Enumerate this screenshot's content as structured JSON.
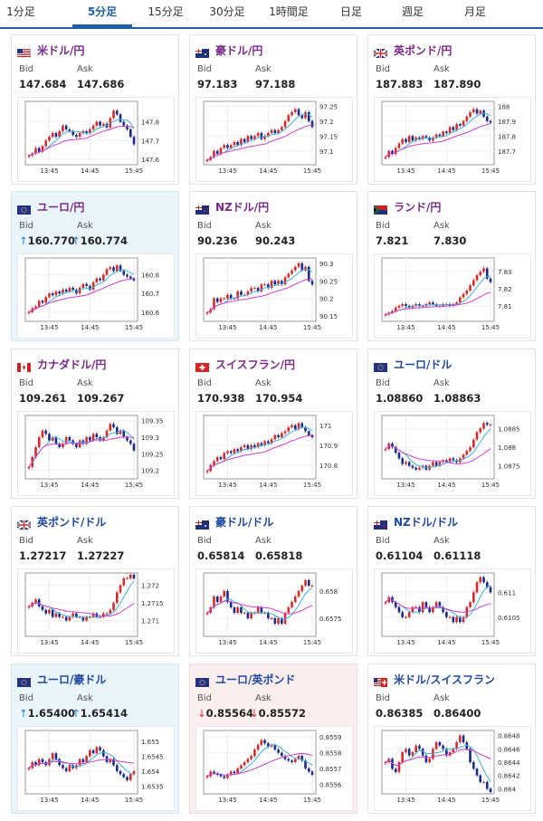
{
  "tabs": [
    {
      "label": "1分足",
      "active": false
    },
    {
      "label": "5分足",
      "active": true
    },
    {
      "label": "15分足",
      "active": false
    },
    {
      "label": "30分足",
      "active": false
    },
    {
      "label": "1時間足",
      "active": false
    },
    {
      "label": "日足",
      "active": false
    },
    {
      "label": "週足",
      "active": false
    },
    {
      "label": "月足",
      "active": false
    }
  ],
  "quote_labels": {
    "bid": "Bid",
    "ask": "Ask"
  },
  "colors": {
    "up": "#d62b2b",
    "down": "#1a2a8a",
    "ma_short": "#3fb0d9",
    "ma_long": "#d040d0",
    "accent": "#1f5fa8"
  },
  "pairs": [
    {
      "name": "米ドル/円",
      "flag": "us",
      "bid": "147.684",
      "ask": "147.686",
      "change": "",
      "highlight": "",
      "chart_data": {
        "type": "candlestick",
        "x_ticks": [
          "13:45",
          "14:45",
          "15:45"
        ],
        "y_ticks": [
          "147.6",
          "147.7",
          "147.8"
        ],
        "ylim": [
          147.58,
          147.9
        ],
        "close": [
          147.62,
          147.63,
          147.66,
          147.64,
          147.67,
          147.7,
          147.72,
          147.74,
          147.72,
          147.75,
          147.78,
          147.76,
          147.75,
          147.73,
          147.72,
          147.74,
          147.75,
          147.74,
          147.76,
          147.78,
          147.8,
          147.78,
          147.79,
          147.77,
          147.82,
          147.86,
          147.84,
          147.8,
          147.78,
          147.76,
          147.72,
          147.68
        ]
      }
    },
    {
      "name": "豪ドル/円",
      "flag": "au",
      "bid": "97.183",
      "ask": "97.188",
      "change": "",
      "highlight": "",
      "chart_data": {
        "type": "candlestick",
        "x_ticks": [
          "13:45",
          "14:45",
          "15:45"
        ],
        "y_ticks": [
          "97.1",
          "97.15",
          "97.2",
          "97.25"
        ],
        "ylim": [
          97.06,
          97.26
        ],
        "close": [
          97.07,
          97.08,
          97.1,
          97.09,
          97.11,
          97.12,
          97.11,
          97.12,
          97.13,
          97.12,
          97.14,
          97.13,
          97.15,
          97.14,
          97.15,
          97.16,
          97.14,
          97.15,
          97.16,
          97.17,
          97.16,
          97.17,
          97.18,
          97.2,
          97.22,
          97.23,
          97.24,
          97.22,
          97.21,
          97.23,
          97.2,
          97.18
        ]
      }
    },
    {
      "name": "英ポンド/円",
      "flag": "gb",
      "bid": "187.883",
      "ask": "187.890",
      "change": "",
      "highlight": "",
      "chart_data": {
        "type": "candlestick",
        "x_ticks": [
          "13:45",
          "14:45",
          "15:45"
        ],
        "y_ticks": [
          "187.7",
          "187.8",
          "187.9",
          "188"
        ],
        "ylim": [
          187.62,
          188.02
        ],
        "close": [
          187.66,
          187.7,
          187.68,
          187.72,
          187.75,
          187.78,
          187.76,
          187.8,
          187.77,
          187.79,
          187.78,
          187.8,
          187.79,
          187.77,
          187.79,
          187.81,
          187.8,
          187.83,
          187.82,
          187.86,
          187.84,
          187.88,
          187.87,
          187.9,
          187.93,
          187.96,
          187.98,
          187.95,
          187.97,
          187.93,
          187.9,
          187.89
        ]
      }
    },
    {
      "name": "ユーロ/円",
      "flag": "eu",
      "bid": "160.770",
      "ask": "160.774",
      "change": "up",
      "highlight": "up",
      "chart_data": {
        "type": "candlestick",
        "x_ticks": [
          "13:45",
          "14:45",
          "15:45"
        ],
        "y_ticks": [
          "160.6",
          "160.7",
          "160.8"
        ],
        "ylim": [
          160.56,
          160.88
        ],
        "close": [
          160.6,
          160.62,
          160.63,
          160.66,
          160.65,
          160.68,
          160.7,
          160.69,
          160.71,
          160.7,
          160.72,
          160.71,
          160.73,
          160.72,
          160.7,
          160.73,
          160.75,
          160.74,
          160.72,
          160.76,
          160.78,
          160.77,
          160.8,
          160.83,
          160.84,
          160.82,
          160.85,
          160.82,
          160.8,
          160.79,
          160.78,
          160.77
        ]
      }
    },
    {
      "name": "NZドル/円",
      "flag": "nz",
      "bid": "90.236",
      "ask": "90.243",
      "change": "",
      "highlight": "",
      "chart_data": {
        "type": "candlestick",
        "x_ticks": [
          "13:45",
          "14:45",
          "15:45"
        ],
        "y_ticks": [
          "90.15",
          "90.2",
          "90.25",
          "90.3"
        ],
        "ylim": [
          90.14,
          90.31
        ],
        "close": [
          90.16,
          90.17,
          90.2,
          90.19,
          90.2,
          90.2,
          90.21,
          90.2,
          90.2,
          90.22,
          90.21,
          90.21,
          90.22,
          90.23,
          90.23,
          90.22,
          90.24,
          90.24,
          90.23,
          90.25,
          90.24,
          90.25,
          90.24,
          90.26,
          90.27,
          90.28,
          90.29,
          90.3,
          90.28,
          90.29,
          90.25,
          90.24
        ]
      }
    },
    {
      "name": "ランド/円",
      "flag": "za",
      "bid": "7.821",
      "ask": "7.830",
      "change": "",
      "highlight": "",
      "chart_data": {
        "type": "candlestick",
        "x_ticks": [
          "13:45",
          "14:45",
          "15:45"
        ],
        "y_ticks": [
          "7.81",
          "7.82",
          "7.83"
        ],
        "ylim": [
          7.802,
          7.837
        ],
        "close": [
          7.805,
          7.806,
          7.807,
          7.809,
          7.81,
          7.811,
          7.81,
          7.809,
          7.81,
          7.811,
          7.81,
          7.81,
          7.811,
          7.812,
          7.811,
          7.81,
          7.81,
          7.811,
          7.811,
          7.81,
          7.811,
          7.812,
          7.815,
          7.817,
          7.819,
          7.822,
          7.825,
          7.828,
          7.83,
          7.832,
          7.826,
          7.824
        ]
      }
    },
    {
      "name": "カナダドル/円",
      "flag": "ca",
      "bid": "109.261",
      "ask": "109.267",
      "change": "",
      "highlight": "",
      "chart_data": {
        "type": "candlestick",
        "x_ticks": [
          "13:45",
          "14:45",
          "15:45"
        ],
        "y_ticks": [
          "109.2",
          "109.25",
          "109.3",
          "109.35"
        ],
        "ylim": [
          109.18,
          109.36
        ],
        "close": [
          109.21,
          109.24,
          109.27,
          109.3,
          109.32,
          109.31,
          109.29,
          109.3,
          109.28,
          109.27,
          109.28,
          109.3,
          109.29,
          109.28,
          109.27,
          109.29,
          109.28,
          109.3,
          109.29,
          109.31,
          109.3,
          109.29,
          109.3,
          109.32,
          109.34,
          109.33,
          109.31,
          109.32,
          109.3,
          109.29,
          109.28,
          109.26
        ]
      }
    },
    {
      "name": "スイスフラン/円",
      "flag": "ch",
      "bid": "170.938",
      "ask": "170.954",
      "change": "",
      "highlight": "",
      "chart_data": {
        "type": "candlestick",
        "x_ticks": [
          "13:45",
          "14:45",
          "15:45"
        ],
        "y_ticks": [
          "170.8",
          "170.9",
          "171"
        ],
        "ylim": [
          170.74,
          171.04
        ],
        "close": [
          170.77,
          170.8,
          170.82,
          170.84,
          170.83,
          170.86,
          170.87,
          170.86,
          170.88,
          170.87,
          170.89,
          170.9,
          170.88,
          170.9,
          170.89,
          170.91,
          170.9,
          170.92,
          170.91,
          170.93,
          170.95,
          170.94,
          170.96,
          170.97,
          170.99,
          171.0,
          170.98,
          171.01,
          170.99,
          170.97,
          170.95,
          170.94
        ]
      }
    },
    {
      "name": "ユーロ/ドル",
      "flag": "eu",
      "bid": "1.08860",
      "ask": "1.08863",
      "change": "",
      "highlight": "",
      "chart_data": {
        "type": "candlestick",
        "x_ticks": [
          "13:45",
          "14:45",
          "15:45"
        ],
        "y_ticks": [
          "1.0875",
          "1.088",
          "1.0885"
        ],
        "ylim": [
          1.0872,
          1.0888
        ],
        "close": [
          1.08795,
          1.0881,
          1.088,
          1.08785,
          1.0877,
          1.08755,
          1.0876,
          1.0875,
          1.08745,
          1.0874,
          1.08745,
          1.0875,
          1.0874,
          1.0875,
          1.0876,
          1.0875,
          1.0876,
          1.08765,
          1.0876,
          1.0877,
          1.08765,
          1.0876,
          1.0877,
          1.0878,
          1.0879,
          1.088,
          1.0882,
          1.0884,
          1.0885,
          1.08865,
          1.0886,
          1.0886
        ]
      }
    },
    {
      "name": "英ポンド/ドル",
      "flag": "gb",
      "bid": "1.27217",
      "ask": "1.27227",
      "change": "",
      "highlight": "",
      "chart_data": {
        "type": "candlestick",
        "x_ticks": [
          "13:45",
          "14:45",
          "15:45"
        ],
        "y_ticks": [
          "1.271",
          "1.2715",
          "1.272"
        ],
        "ylim": [
          1.2706,
          1.2723
        ],
        "close": [
          1.2714,
          1.2715,
          1.2716,
          1.2714,
          1.2713,
          1.2712,
          1.2713,
          1.2711,
          1.2712,
          1.2711,
          1.2711,
          1.271,
          1.2711,
          1.2712,
          1.2711,
          1.2711,
          1.271,
          1.2711,
          1.2711,
          1.2712,
          1.2711,
          1.2711,
          1.2712,
          1.2712,
          1.2713,
          1.2715,
          1.2718,
          1.272,
          1.2722,
          1.2722,
          1.2723,
          1.2722
        ]
      }
    },
    {
      "name": "豪ドル/ドル",
      "flag": "au",
      "bid": "0.65814",
      "ask": "0.65818",
      "change": "",
      "highlight": "",
      "chart_data": {
        "type": "candlestick",
        "x_ticks": [
          "13:45",
          "14:45",
          "15:45"
        ],
        "y_ticks": [
          "0.6575",
          "0.658"
        ],
        "ylim": [
          0.6572,
          0.6583
        ],
        "close": [
          0.6576,
          0.6577,
          0.6579,
          0.6578,
          0.6579,
          0.658,
          0.6578,
          0.6577,
          0.6576,
          0.6577,
          0.6576,
          0.6576,
          0.6575,
          0.6576,
          0.6576,
          0.6577,
          0.6576,
          0.6576,
          0.6575,
          0.6575,
          0.6574,
          0.6575,
          0.6574,
          0.6576,
          0.6577,
          0.6578,
          0.6579,
          0.658,
          0.6581,
          0.6582,
          0.6581,
          0.6581
        ]
      }
    },
    {
      "name": "NZドル/ドル",
      "flag": "nz",
      "bid": "0.61104",
      "ask": "0.61118",
      "change": "",
      "highlight": "",
      "chart_data": {
        "type": "candlestick",
        "x_ticks": [
          "13:45",
          "14:45",
          "15:45"
        ],
        "y_ticks": [
          "0.6105",
          "0.611"
        ],
        "ylim": [
          0.61015,
          0.61135
        ],
        "close": [
          0.6108,
          0.6109,
          0.6108,
          0.6107,
          0.6106,
          0.6105,
          0.6105,
          0.6106,
          0.6107,
          0.6107,
          0.6106,
          0.6108,
          0.6107,
          0.6106,
          0.6107,
          0.6108,
          0.6107,
          0.6106,
          0.6105,
          0.6105,
          0.6104,
          0.6105,
          0.6104,
          0.6105,
          0.6107,
          0.6108,
          0.611,
          0.6112,
          0.6113,
          0.6112,
          0.6111,
          0.611
        ]
      }
    },
    {
      "name": "ユーロ/豪ドル",
      "flag": "eu",
      "bid": "1.65400",
      "ask": "1.65414",
      "change": "up",
      "highlight": "up",
      "chart_data": {
        "type": "candlestick",
        "x_ticks": [
          "13:45",
          "14:45",
          "15:45"
        ],
        "y_ticks": [
          "1.6535",
          "1.654",
          "1.6545",
          "1.655"
        ],
        "ylim": [
          1.6533,
          1.6553
        ],
        "close": [
          1.6541,
          1.6543,
          1.6542,
          1.6544,
          1.6543,
          1.6542,
          1.6544,
          1.6546,
          1.6544,
          1.6542,
          1.6541,
          1.654,
          1.6542,
          1.6541,
          1.6542,
          1.6544,
          1.6543,
          1.6545,
          1.6547,
          1.6546,
          1.6548,
          1.6547,
          1.6545,
          1.6543,
          1.6544,
          1.6542,
          1.654,
          1.6539,
          1.6538,
          1.6537,
          1.6539,
          1.654
        ]
      }
    },
    {
      "name": "ユーロ/英ポンド",
      "flag": "eu",
      "bid": "0.85564",
      "ask": "0.85572",
      "change": "down",
      "highlight": "down",
      "chart_data": {
        "type": "candlestick",
        "x_ticks": [
          "13:45",
          "14:45",
          "15:45"
        ],
        "y_ticks": [
          "0.8556",
          "0.8557",
          "0.8558",
          "0.8559"
        ],
        "ylim": [
          0.85555,
          0.85593
        ],
        "close": [
          0.85565,
          0.85568,
          0.85567,
          0.85566,
          0.85565,
          0.85564,
          0.85566,
          0.85568,
          0.85567,
          0.8557,
          0.85572,
          0.85574,
          0.85576,
          0.85578,
          0.85582,
          0.85585,
          0.85588,
          0.85586,
          0.85584,
          0.85585,
          0.85582,
          0.8558,
          0.85578,
          0.85576,
          0.85575,
          0.85574,
          0.85576,
          0.85578,
          0.85575,
          0.8557,
          0.85568,
          0.85566
        ]
      }
    },
    {
      "name": "米ドル/スイスフラン",
      "flag": "usch",
      "bid": "0.86385",
      "ask": "0.86400",
      "change": "",
      "highlight": "",
      "chart_data": {
        "type": "candlestick",
        "x_ticks": [
          "13:45",
          "14:45",
          "15:45"
        ],
        "y_ticks": [
          "0.864",
          "0.8642",
          "0.8644",
          "0.8646",
          "0.8648"
        ],
        "ylim": [
          0.86395,
          0.86485
        ],
        "close": [
          0.8644,
          0.86445,
          0.8643,
          0.86425,
          0.8644,
          0.86455,
          0.8646,
          0.8645,
          0.86455,
          0.86465,
          0.8646,
          0.8645,
          0.8644,
          0.86445,
          0.8646,
          0.8647,
          0.86465,
          0.8646,
          0.8645,
          0.86455,
          0.8646,
          0.8647,
          0.8648,
          0.8647,
          0.8646,
          0.8644,
          0.8643,
          0.8642,
          0.8641,
          0.8641,
          0.864,
          0.86395
        ]
      }
    }
  ]
}
